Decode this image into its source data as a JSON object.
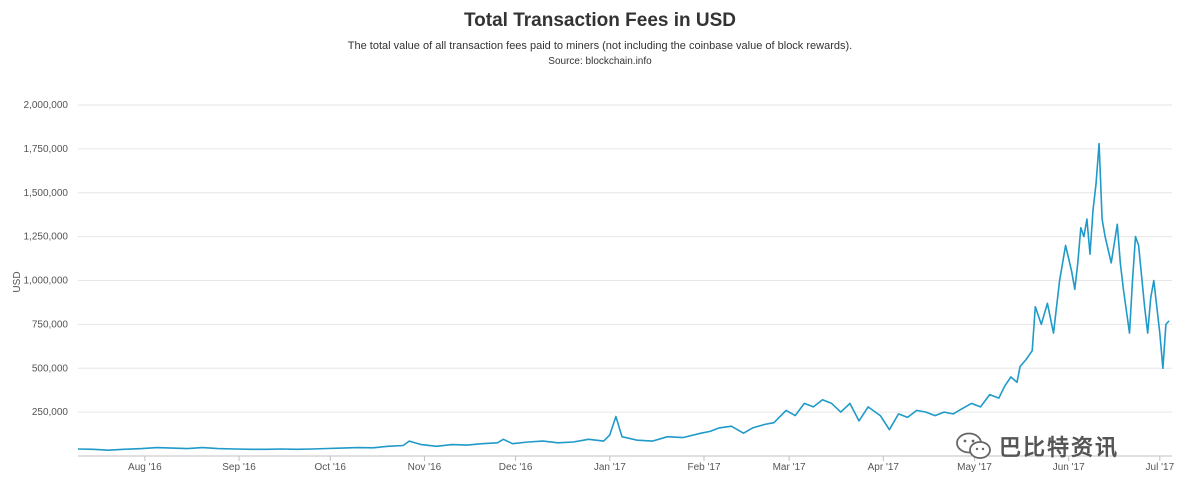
{
  "header": {
    "title": "Total Transaction Fees in USD",
    "subtitle": "The total value of all transaction fees paid to miners (not including the coinbase value of block rewards).",
    "source": "Source: blockchain.info"
  },
  "watermark": {
    "text": "巴比特资讯",
    "icon": "wechat-icon"
  },
  "chart_data": {
    "type": "line",
    "title": "Total Transaction Fees in USD",
    "subtitle": "The total value of all transaction fees paid to miners (not including the coinbase value of block rewards).",
    "ylabel": "USD",
    "xlabel": "",
    "ylim": [
      0,
      2000000
    ],
    "yticks": [
      250000,
      500000,
      750000,
      1000000,
      1250000,
      1500000,
      1750000,
      2000000
    ],
    "ytick_labels": [
      "250,000",
      "500,000",
      "750,000",
      "1,000,000",
      "1,250,000",
      "1,500,000",
      "1,750,000",
      "2,000,000"
    ],
    "x_start": "2016-07-10",
    "x_end": "2017-07-05",
    "xticks": [
      "2016-08-01",
      "2016-09-01",
      "2016-10-01",
      "2016-11-01",
      "2016-12-01",
      "2017-01-01",
      "2017-02-01",
      "2017-03-01",
      "2017-04-01",
      "2017-05-01",
      "2017-06-01",
      "2017-07-01"
    ],
    "xtick_labels": [
      "Aug '16",
      "Sep '16",
      "Oct '16",
      "Nov '16",
      "Dec '16",
      "Jan '17",
      "Feb '17",
      "Mar '17",
      "Apr '17",
      "May '17",
      "Jun '17",
      "Jul '17"
    ],
    "grid": true,
    "line_color": "#1f9ac9",
    "series": [
      {
        "name": "",
        "x": [
          "2016-07-10",
          "2016-07-15",
          "2016-07-20",
          "2016-07-25",
          "2016-07-31",
          "2016-08-05",
          "2016-08-10",
          "2016-08-15",
          "2016-08-20",
          "2016-08-25",
          "2016-08-31",
          "2016-09-05",
          "2016-09-10",
          "2016-09-15",
          "2016-09-20",
          "2016-09-25",
          "2016-09-30",
          "2016-10-05",
          "2016-10-10",
          "2016-10-15",
          "2016-10-20",
          "2016-10-25",
          "2016-10-27",
          "2016-10-31",
          "2016-11-05",
          "2016-11-10",
          "2016-11-15",
          "2016-11-20",
          "2016-11-25",
          "2016-11-27",
          "2016-11-30",
          "2016-12-05",
          "2016-12-10",
          "2016-12-15",
          "2016-12-20",
          "2016-12-25",
          "2016-12-30",
          "2017-01-01",
          "2017-01-03",
          "2017-01-05",
          "2017-01-10",
          "2017-01-15",
          "2017-01-20",
          "2017-01-25",
          "2017-01-31",
          "2017-02-03",
          "2017-02-06",
          "2017-02-10",
          "2017-02-14",
          "2017-02-17",
          "2017-02-21",
          "2017-02-24",
          "2017-02-28",
          "2017-03-03",
          "2017-03-06",
          "2017-03-09",
          "2017-03-12",
          "2017-03-15",
          "2017-03-18",
          "2017-03-21",
          "2017-03-24",
          "2017-03-27",
          "2017-03-31",
          "2017-04-03",
          "2017-04-06",
          "2017-04-09",
          "2017-04-12",
          "2017-04-15",
          "2017-04-18",
          "2017-04-21",
          "2017-04-24",
          "2017-04-27",
          "2017-04-30",
          "2017-05-03",
          "2017-05-06",
          "2017-05-09",
          "2017-05-11",
          "2017-05-13",
          "2017-05-15",
          "2017-05-16",
          "2017-05-18",
          "2017-05-20",
          "2017-05-21",
          "2017-05-23",
          "2017-05-25",
          "2017-05-27",
          "2017-05-29",
          "2017-05-31",
          "2017-06-02",
          "2017-06-03",
          "2017-06-04",
          "2017-06-05",
          "2017-06-06",
          "2017-06-07",
          "2017-06-08",
          "2017-06-09",
          "2017-06-10",
          "2017-06-11",
          "2017-06-12",
          "2017-06-13",
          "2017-06-15",
          "2017-06-17",
          "2017-06-18",
          "2017-06-19",
          "2017-06-21",
          "2017-06-22",
          "2017-06-23",
          "2017-06-24",
          "2017-06-26",
          "2017-06-27",
          "2017-06-28",
          "2017-06-29",
          "2017-06-30",
          "2017-07-01",
          "2017-07-02",
          "2017-07-03",
          "2017-07-04"
        ],
        "y": [
          40000,
          38000,
          33000,
          38000,
          42000,
          48000,
          45000,
          42000,
          48000,
          42000,
          40000,
          38000,
          38000,
          40000,
          38000,
          40000,
          43000,
          45000,
          48000,
          47000,
          55000,
          60000,
          85000,
          65000,
          55000,
          65000,
          62000,
          70000,
          75000,
          95000,
          70000,
          80000,
          85000,
          75000,
          80000,
          95000,
          85000,
          120000,
          225000,
          110000,
          90000,
          85000,
          110000,
          105000,
          130000,
          140000,
          160000,
          170000,
          130000,
          160000,
          180000,
          190000,
          260000,
          230000,
          300000,
          280000,
          320000,
          300000,
          250000,
          300000,
          200000,
          280000,
          230000,
          150000,
          240000,
          220000,
          260000,
          250000,
          230000,
          250000,
          240000,
          270000,
          300000,
          280000,
          350000,
          330000,
          400000,
          450000,
          420000,
          510000,
          550000,
          600000,
          850000,
          750000,
          870000,
          700000,
          1000000,
          1200000,
          1050000,
          950000,
          1100000,
          1300000,
          1250000,
          1350000,
          1150000,
          1400000,
          1550000,
          1780000,
          1350000,
          1250000,
          1100000,
          1320000,
          1100000,
          950000,
          700000,
          1000000,
          1250000,
          1200000,
          850000,
          700000,
          900000,
          1000000,
          850000,
          700000,
          500000,
          750000,
          770000
        ]
      }
    ]
  }
}
